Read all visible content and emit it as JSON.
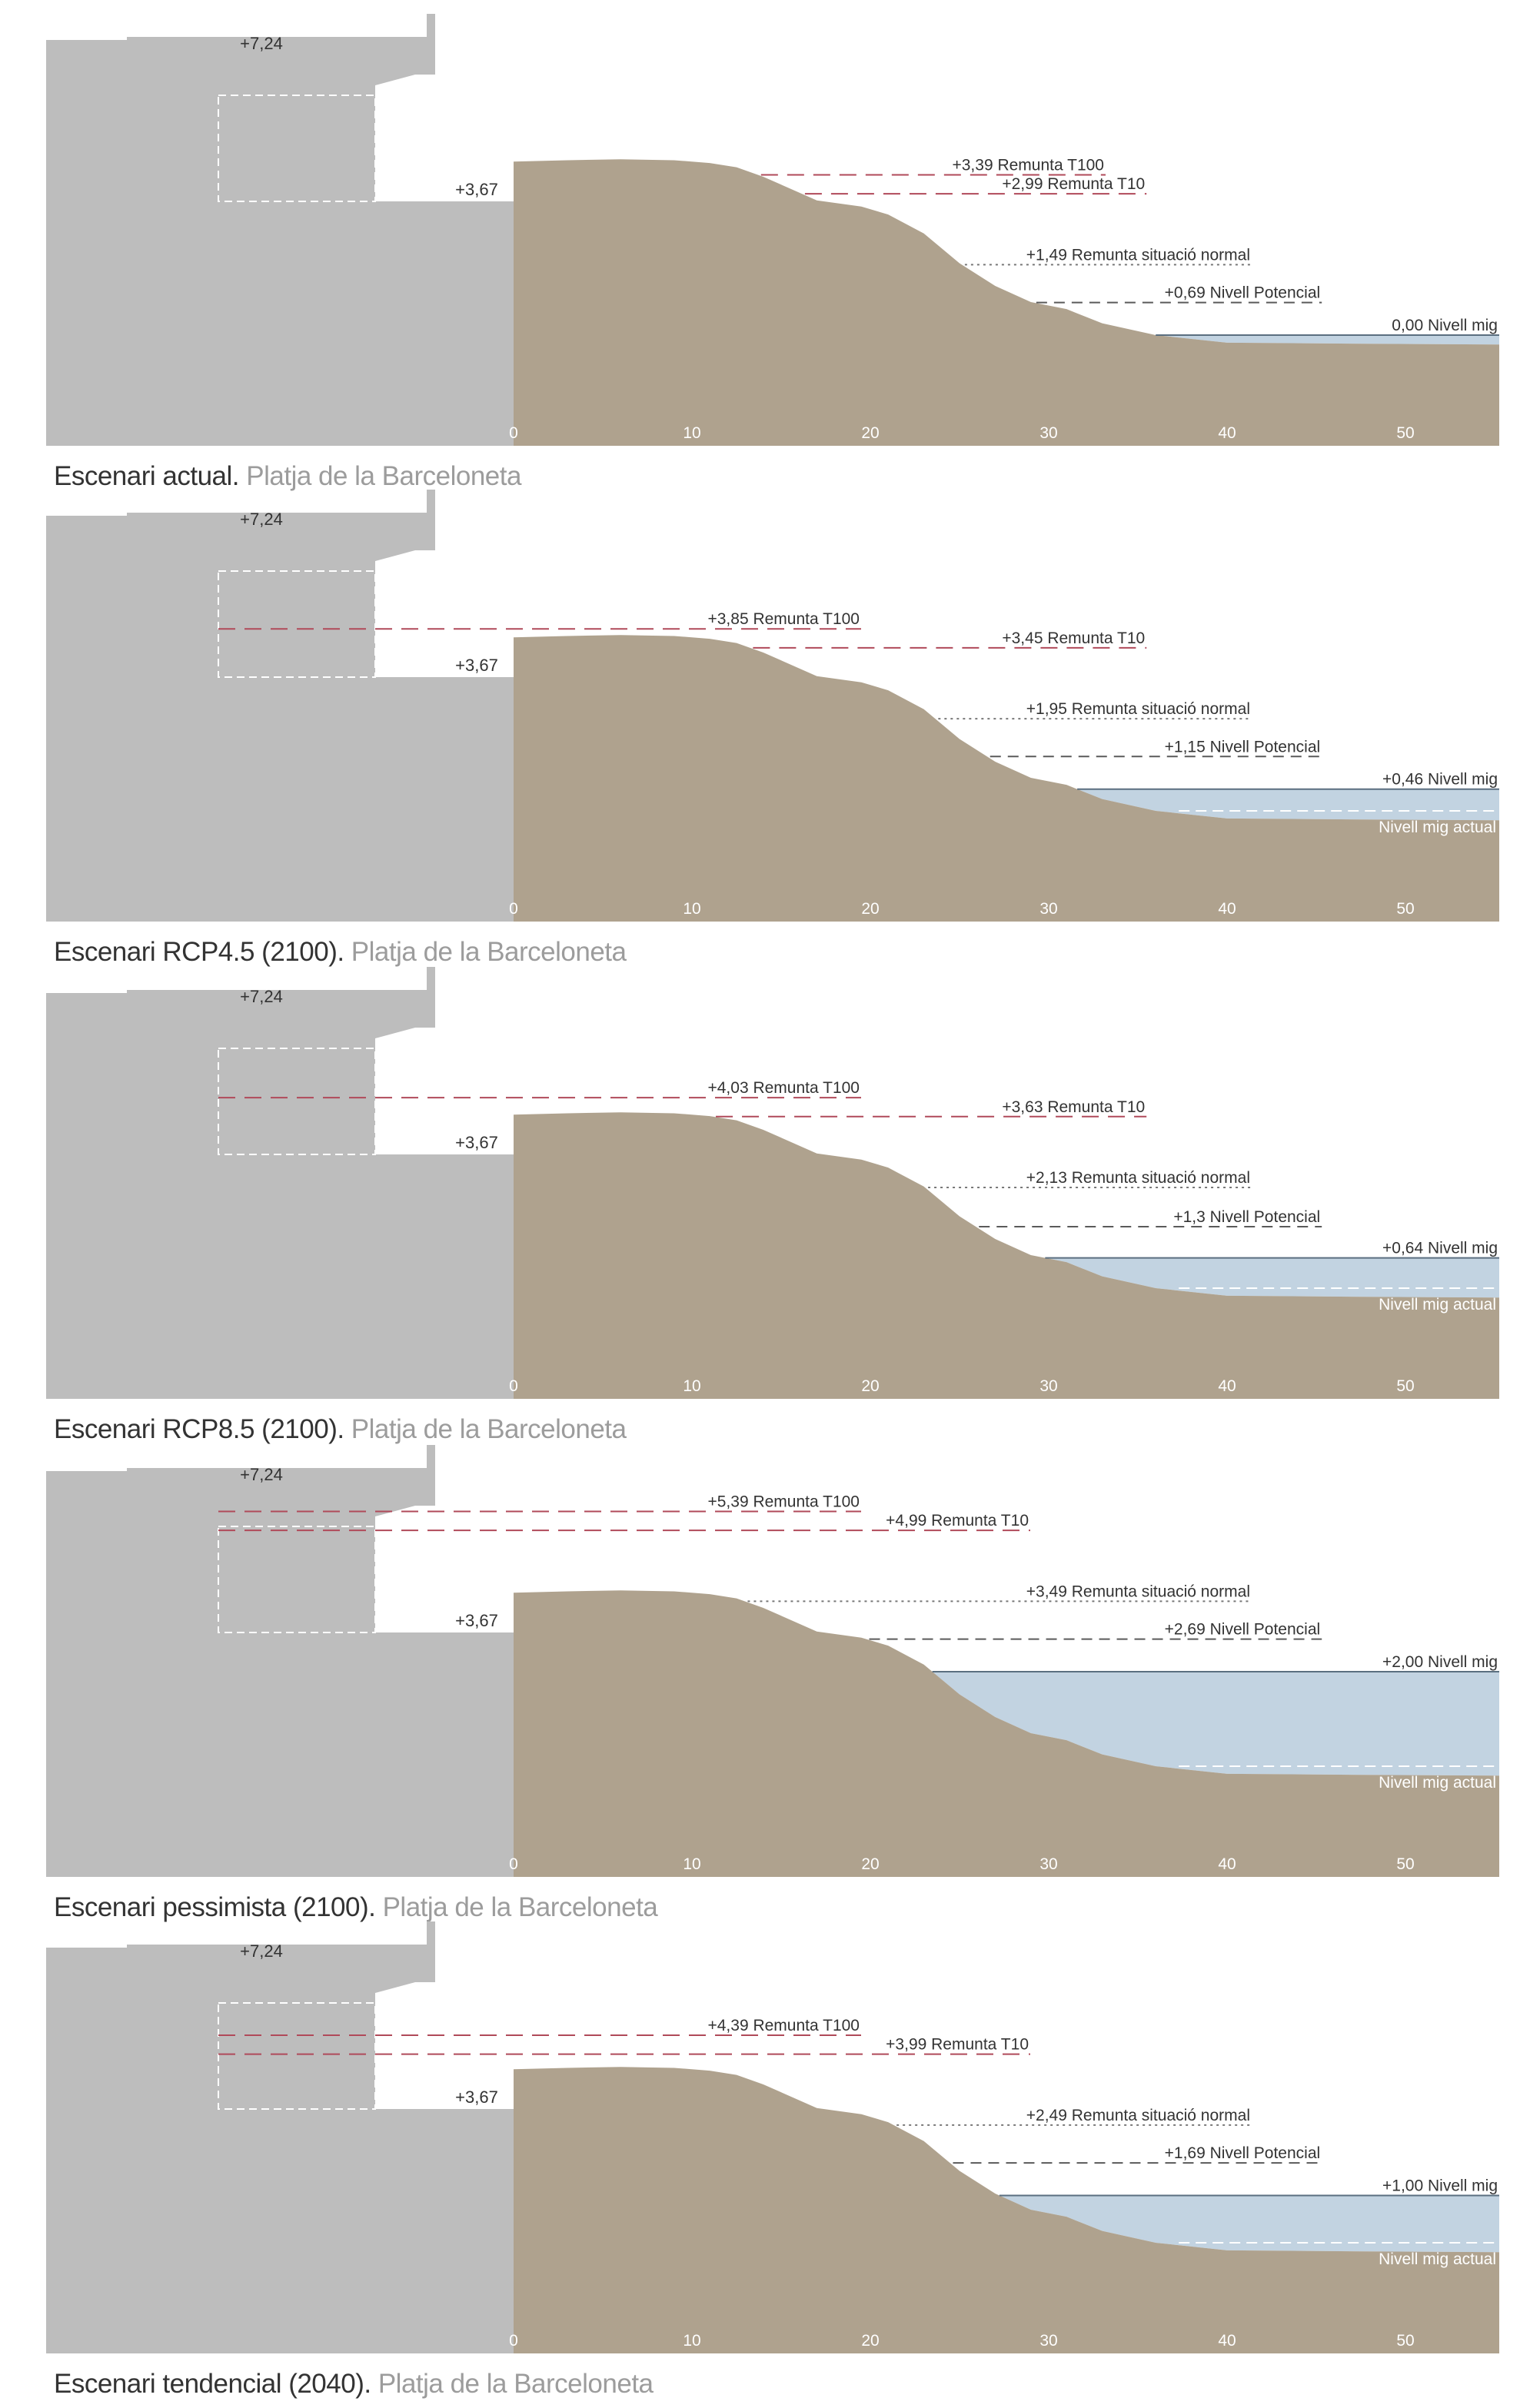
{
  "colors": {
    "building": "#bdbdbd",
    "sand": "#afa28e",
    "water": "#c2d3e1",
    "water_line": "#5b6f80",
    "runup_red": "#b04a5a",
    "potential": "#5a5a5a",
    "text": "#333333",
    "caption_sub": "#9c9c9c",
    "axis_tick": "#ffffff"
  },
  "axis": {
    "unit_note": "",
    "ticks": [
      "0",
      "10",
      "20",
      "30",
      "40",
      "50"
    ]
  },
  "building": {
    "top_label": "+7,24",
    "promenade_label": "+3,67"
  },
  "scenarios": [
    {
      "caption_main": "Escenari actual.",
      "caption_sub": " Platja de la Barceloneta",
      "water_level": 0.0,
      "show_current_mean": false,
      "lines": [
        {
          "kind": "t100",
          "label": "+3,39 Remunta T100",
          "level": 3.39
        },
        {
          "kind": "t10",
          "label": "+2,99 Remunta T10",
          "level": 2.99
        },
        {
          "kind": "normal",
          "label": "+1,49 Remunta situació normal",
          "level": 1.49
        },
        {
          "kind": "potential",
          "label": "+0,69 Nivell Potencial",
          "level": 0.69
        },
        {
          "kind": "mean",
          "label": "0,00 Nivell mig",
          "level": 0.0
        }
      ]
    },
    {
      "caption_main": "Escenari RCP4.5 (2100).",
      "caption_sub": " Platja de la Barceloneta",
      "water_level": 0.46,
      "show_current_mean": true,
      "current_mean_label": "Nivell mig actual",
      "lines": [
        {
          "kind": "t100",
          "label": "+3,85 Remunta T100",
          "level": 3.85
        },
        {
          "kind": "t10",
          "label": "+3,45 Remunta T10",
          "level": 3.45
        },
        {
          "kind": "normal",
          "label": "+1,95 Remunta situació normal",
          "level": 1.95
        },
        {
          "kind": "potential",
          "label": "+1,15 Nivell Potencial",
          "level": 1.15
        },
        {
          "kind": "mean",
          "label": "+0,46 Nivell mig",
          "level": 0.46
        }
      ]
    },
    {
      "caption_main": "Escenari RCP8.5 (2100).",
      "caption_sub": " Platja de la Barceloneta",
      "water_level": 0.64,
      "show_current_mean": true,
      "current_mean_label": "Nivell mig actual",
      "lines": [
        {
          "kind": "t100",
          "label": "+4,03 Remunta T100",
          "level": 4.03
        },
        {
          "kind": "t10",
          "label": "+3,63 Remunta T10",
          "level": 3.63
        },
        {
          "kind": "normal",
          "label": "+2,13 Remunta situació normal",
          "level": 2.13
        },
        {
          "kind": "potential",
          "label": "+1,3 Nivell Potencial",
          "level": 1.3
        },
        {
          "kind": "mean",
          "label": "+0,64 Nivell mig",
          "level": 0.64
        }
      ]
    },
    {
      "caption_main": "Escenari pessimista (2100).",
      "caption_sub": " Platja de la Barceloneta",
      "water_level": 2.0,
      "show_current_mean": true,
      "current_mean_label": "Nivell mig actual",
      "lines": [
        {
          "kind": "t100",
          "label": "+5,39 Remunta T100",
          "level": 5.39
        },
        {
          "kind": "t10",
          "label": "+4,99 Remunta T10",
          "level": 4.99
        },
        {
          "kind": "normal",
          "label": "+3,49 Remunta situació normal",
          "level": 3.49
        },
        {
          "kind": "potential",
          "label": "+2,69 Nivell Potencial",
          "level": 2.69
        },
        {
          "kind": "mean",
          "label": "+2,00 Nivell mig",
          "level": 2.0
        }
      ]
    },
    {
      "caption_main": "Escenari tendencial (2040).",
      "caption_sub": " Platja de la Barceloneta",
      "water_level": 1.0,
      "show_current_mean": true,
      "current_mean_label": "Nivell mig actual",
      "lines": [
        {
          "kind": "t100",
          "label": "+4,39 Remunta T100",
          "level": 4.39
        },
        {
          "kind": "t10",
          "label": "+3,99 Remunta T10",
          "level": 3.99
        },
        {
          "kind": "normal",
          "label": "+2,49 Remunta situació normal",
          "level": 2.49
        },
        {
          "kind": "potential",
          "label": "+1,69 Nivell Potencial",
          "level": 1.69
        },
        {
          "kind": "mean",
          "label": "+1,00 Nivell mig",
          "level": 1.0
        }
      ]
    }
  ]
}
